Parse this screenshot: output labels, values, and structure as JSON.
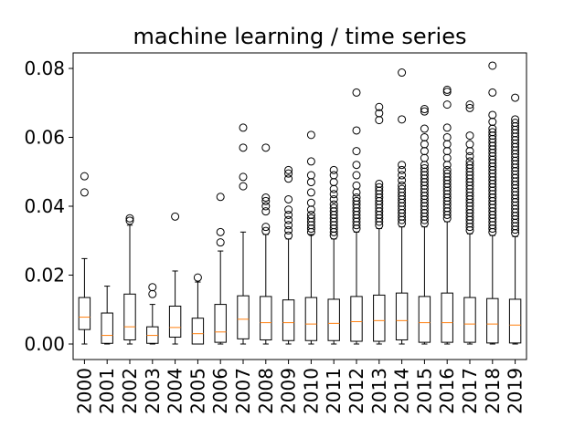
{
  "chart_data": {
    "type": "boxplot",
    "title": "machine learning / time series",
    "xlabel": "",
    "ylabel": "",
    "ylim": [
      -0.0045,
      0.0845
    ],
    "yticks": [
      0.0,
      0.02,
      0.04,
      0.06,
      0.08
    ],
    "ytick_labels": [
      "0.00",
      "0.02",
      "0.04",
      "0.06",
      "0.08"
    ],
    "grid": false,
    "colors": {
      "box": "#000000",
      "median": "#ff7f0e"
    },
    "categories": [
      "2000",
      "2001",
      "2002",
      "2003",
      "2004",
      "2005",
      "2006",
      "2007",
      "2008",
      "2009",
      "2010",
      "2011",
      "2012",
      "2013",
      "2014",
      "2015",
      "2016",
      "2017",
      "2018",
      "2019"
    ],
    "boxes": [
      {
        "year": "2000",
        "whislo": 0.0,
        "q1": 0.0042,
        "med": 0.0078,
        "q3": 0.0135,
        "whishi": 0.0248,
        "fliers": [
          0.044,
          0.0487
        ]
      },
      {
        "year": "2001",
        "whislo": 0.0,
        "q1": 0.0002,
        "med": 0.0025,
        "q3": 0.009,
        "whishi": 0.0168,
        "fliers": []
      },
      {
        "year": "2002",
        "whislo": 0.0,
        "q1": 0.0012,
        "med": 0.005,
        "q3": 0.0145,
        "whishi": 0.0345,
        "fliers": [
          0.0358,
          0.0365
        ]
      },
      {
        "year": "2003",
        "whislo": 0.0,
        "q1": 0.0002,
        "med": 0.0025,
        "q3": 0.005,
        "whishi": 0.0115,
        "fliers": [
          0.0145,
          0.0165
        ]
      },
      {
        "year": "2004",
        "whislo": 0.0,
        "q1": 0.002,
        "med": 0.0048,
        "q3": 0.011,
        "whishi": 0.0212,
        "fliers": [
          0.037
        ]
      },
      {
        "year": "2005",
        "whislo": 0.0,
        "q1": 0.0,
        "med": 0.003,
        "q3": 0.0075,
        "whishi": 0.018,
        "fliers": [
          0.0193
        ]
      },
      {
        "year": "2006",
        "whislo": 0.0,
        "q1": 0.0005,
        "med": 0.0035,
        "q3": 0.0115,
        "whishi": 0.027,
        "fliers": [
          0.0295,
          0.0325,
          0.0427
        ]
      },
      {
        "year": "2007",
        "whislo": 0.0,
        "q1": 0.0015,
        "med": 0.0072,
        "q3": 0.014,
        "whishi": 0.0325,
        "fliers": [
          0.0458,
          0.0485,
          0.057,
          0.0628
        ]
      },
      {
        "year": "2008",
        "whislo": 0.0,
        "q1": 0.0012,
        "med": 0.0062,
        "q3": 0.0138,
        "whishi": 0.0318,
        "fliers": [
          0.0328,
          0.034,
          0.0385,
          0.04,
          0.0415,
          0.0425,
          0.057
        ]
      },
      {
        "year": "2009",
        "whislo": 0.0,
        "q1": 0.001,
        "med": 0.0062,
        "q3": 0.0128,
        "whishi": 0.0305,
        "fliers": [
          0.0315,
          0.033,
          0.0345,
          0.036,
          0.0375,
          0.039,
          0.042,
          0.048,
          0.0495,
          0.0505
        ]
      },
      {
        "year": "2010",
        "whislo": 0.0,
        "q1": 0.001,
        "med": 0.0058,
        "q3": 0.0135,
        "whishi": 0.0318,
        "fliers": [
          0.0325,
          0.0335,
          0.0345,
          0.0355,
          0.0365,
          0.0375,
          0.039,
          0.041,
          0.044,
          0.047,
          0.049,
          0.053,
          0.0607
        ]
      },
      {
        "year": "2011",
        "whislo": 0.0,
        "q1": 0.001,
        "med": 0.006,
        "q3": 0.013,
        "whishi": 0.0305,
        "fliers": [
          0.0315,
          0.0325,
          0.0335,
          0.0345,
          0.0355,
          0.0365,
          0.0375,
          0.0385,
          0.0395,
          0.0405,
          0.042,
          0.0435,
          0.045,
          0.047,
          0.049,
          0.0505
        ]
      },
      {
        "year": "2012",
        "whislo": 0.0,
        "q1": 0.0008,
        "med": 0.0065,
        "q3": 0.0138,
        "whishi": 0.0325,
        "fliers": [
          0.0335,
          0.0345,
          0.0355,
          0.0365,
          0.0375,
          0.0385,
          0.0395,
          0.0405,
          0.0415,
          0.0425,
          0.044,
          0.046,
          0.049,
          0.052,
          0.056,
          0.062,
          0.073
        ]
      },
      {
        "year": "2013",
        "whislo": 0.0,
        "q1": 0.0008,
        "med": 0.0068,
        "q3": 0.0142,
        "whishi": 0.0335,
        "fliers": [
          0.0345,
          0.0355,
          0.0365,
          0.0375,
          0.0385,
          0.0395,
          0.0405,
          0.0415,
          0.0425,
          0.0435,
          0.0445,
          0.0455,
          0.0465,
          0.065,
          0.067,
          0.0688
        ]
      },
      {
        "year": "2014",
        "whislo": 0.0,
        "q1": 0.0012,
        "med": 0.0068,
        "q3": 0.0148,
        "whishi": 0.034,
        "fliers": [
          0.035,
          0.036,
          0.037,
          0.038,
          0.039,
          0.04,
          0.041,
          0.042,
          0.043,
          0.044,
          0.045,
          0.046,
          0.0475,
          0.049,
          0.0505,
          0.052,
          0.0652,
          0.0788
        ]
      },
      {
        "year": "2015",
        "whislo": 0.0,
        "q1": 0.0005,
        "med": 0.0062,
        "q3": 0.0138,
        "whishi": 0.034,
        "fliers": [
          0.035,
          0.036,
          0.037,
          0.038,
          0.039,
          0.04,
          0.041,
          0.042,
          0.043,
          0.044,
          0.045,
          0.046,
          0.047,
          0.048,
          0.049,
          0.05,
          0.051,
          0.052,
          0.054,
          0.056,
          0.058,
          0.06,
          0.0625,
          0.0675,
          0.0682
        ]
      },
      {
        "year": "2016",
        "whislo": 0.0,
        "q1": 0.0005,
        "med": 0.0062,
        "q3": 0.0148,
        "whishi": 0.0355,
        "fliers": [
          0.0365,
          0.0375,
          0.0385,
          0.0395,
          0.0405,
          0.0415,
          0.0425,
          0.0435,
          0.0445,
          0.0455,
          0.0465,
          0.0475,
          0.0485,
          0.0495,
          0.0505,
          0.052,
          0.054,
          0.056,
          0.058,
          0.06,
          0.0628,
          0.0695,
          0.0732,
          0.0738
        ]
      },
      {
        "year": "2017",
        "whislo": 0.0,
        "q1": 0.0005,
        "med": 0.0058,
        "q3": 0.0135,
        "whishi": 0.032,
        "fliers": [
          0.033,
          0.034,
          0.035,
          0.036,
          0.037,
          0.038,
          0.039,
          0.04,
          0.041,
          0.042,
          0.043,
          0.044,
          0.045,
          0.046,
          0.047,
          0.048,
          0.049,
          0.05,
          0.051,
          0.052,
          0.053,
          0.0545,
          0.056,
          0.058,
          0.0605,
          0.0685,
          0.0695
        ]
      },
      {
        "year": "2018",
        "whislo": 0.0,
        "q1": 0.0003,
        "med": 0.0058,
        "q3": 0.0132,
        "whishi": 0.0315,
        "fliers": [
          0.0325,
          0.0335,
          0.0345,
          0.0355,
          0.0365,
          0.0375,
          0.0385,
          0.0395,
          0.0405,
          0.0415,
          0.0425,
          0.0435,
          0.0445,
          0.0455,
          0.0465,
          0.0475,
          0.0485,
          0.0495,
          0.0505,
          0.0515,
          0.0525,
          0.0535,
          0.0545,
          0.0555,
          0.0565,
          0.0575,
          0.0585,
          0.0595,
          0.0605,
          0.0615,
          0.0625,
          0.0645,
          0.0665,
          0.073,
          0.0808
        ]
      },
      {
        "year": "2019",
        "whislo": 0.0,
        "q1": 0.0003,
        "med": 0.0055,
        "q3": 0.013,
        "whishi": 0.0312,
        "fliers": [
          0.0322,
          0.0332,
          0.0342,
          0.0352,
          0.0362,
          0.0372,
          0.0382,
          0.0392,
          0.0402,
          0.0412,
          0.0422,
          0.0432,
          0.0442,
          0.0452,
          0.0462,
          0.0472,
          0.0482,
          0.0492,
          0.0502,
          0.0512,
          0.0522,
          0.0532,
          0.0542,
          0.0552,
          0.0562,
          0.0572,
          0.0582,
          0.0592,
          0.0602,
          0.0612,
          0.0622,
          0.0632,
          0.0642,
          0.0652,
          0.0715
        ]
      }
    ]
  }
}
